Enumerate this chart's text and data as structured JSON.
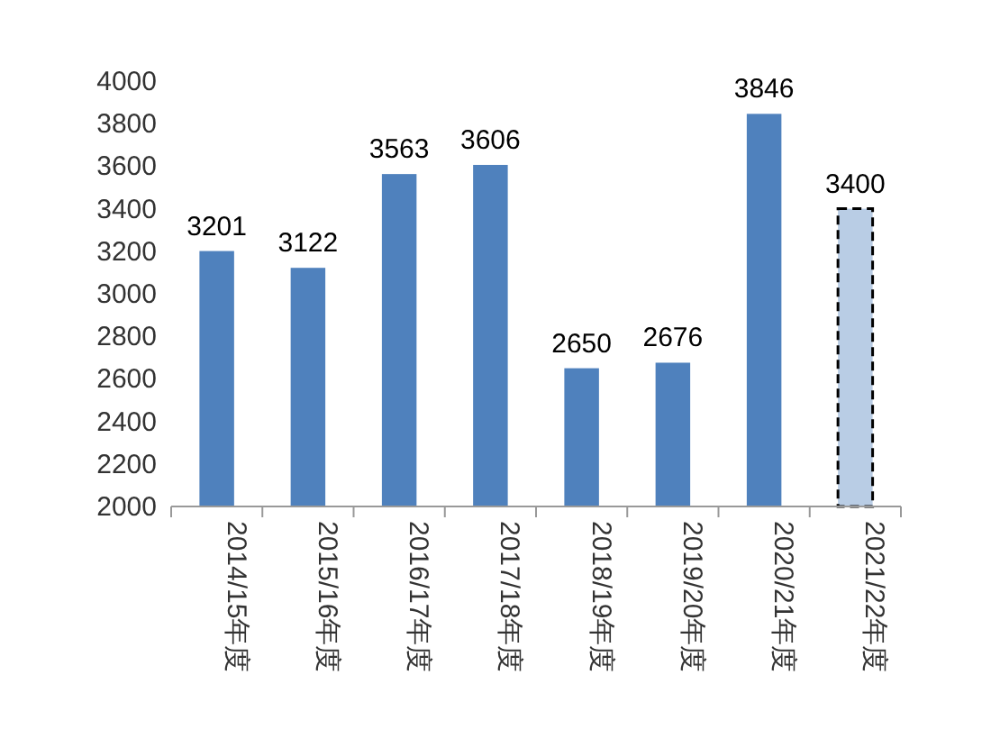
{
  "chart_data": {
    "type": "bar",
    "stacked": true,
    "categories": [
      "2014/15年度",
      "2015/16年度",
      "2016/17年度",
      "2017/18年度",
      "2018/19年度",
      "2019/20年度",
      "2020/21年度",
      "2021/22年度"
    ],
    "series": [
      {
        "color": "#4f81bd",
        "values": [
          3201,
          3122,
          3563,
          3606,
          2650,
          2676,
          3846,
          null
        ]
      },
      {
        "color": "#b9cde5",
        "line_style": "dashed",
        "values": [
          null,
          null,
          null,
          null,
          null,
          null,
          null,
          3400
        ]
      }
    ],
    "ylim": [
      2000,
      4000
    ],
    "yticks": [
      2000,
      2200,
      2400,
      2600,
      2800,
      3000,
      3200,
      3400,
      3600,
      3800,
      4000
    ],
    "data_labels": true,
    "grid": false
  }
}
